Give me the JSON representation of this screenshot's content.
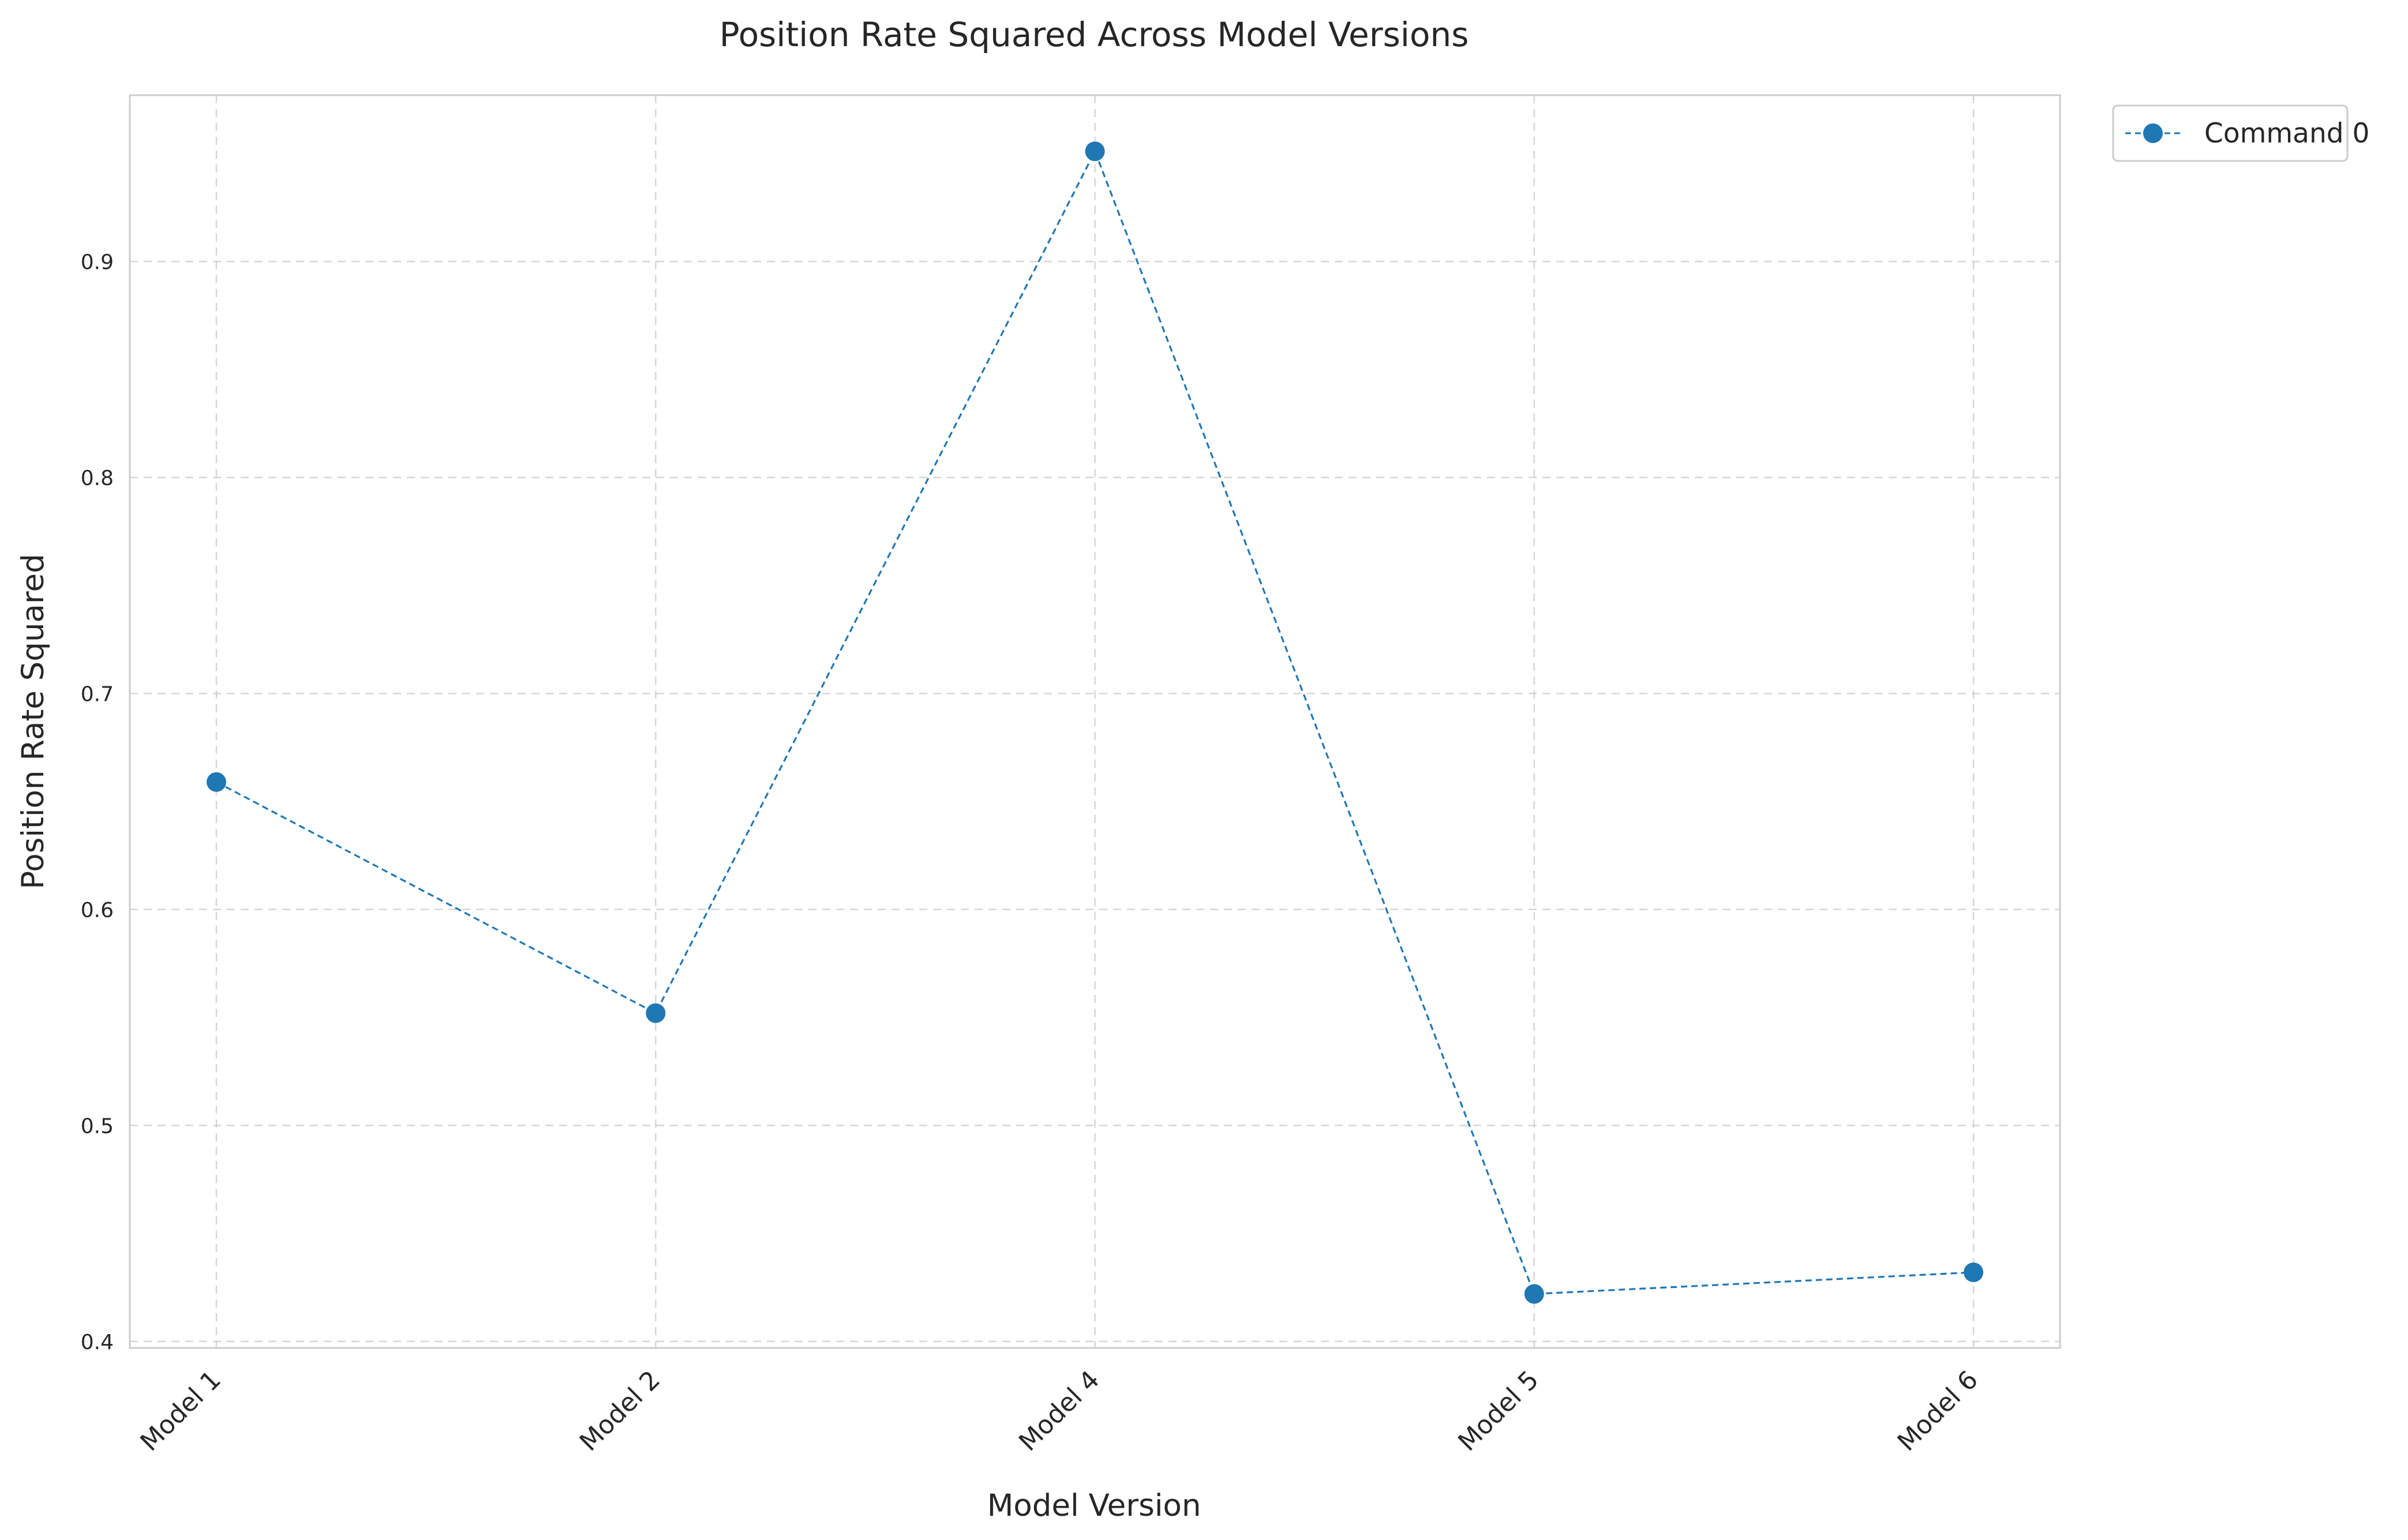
{
  "chart_data": {
    "type": "line",
    "title": "Position Rate Squared Across Model Versions",
    "xlabel": "Model Version",
    "ylabel": "Position Rate Squared",
    "categories": [
      "Model 1",
      "Model 2",
      "Model 4",
      "Model 5",
      "Model 6"
    ],
    "series": [
      {
        "name": "Command 0",
        "values": [
          0.659,
          0.552,
          0.951,
          0.422,
          0.432
        ],
        "color": "#1f77b4",
        "line_style": "dashed",
        "marker": "circle"
      }
    ],
    "ylim": [
      0.397,
      0.977
    ],
    "yticks": [
      0.4,
      0.5,
      0.6,
      0.7,
      0.8,
      0.9
    ],
    "ytick_labels": [
      "0.4",
      "0.5",
      "0.6",
      "0.7",
      "0.8",
      "0.9"
    ],
    "grid": true,
    "legend_position": "outside-top-right"
  }
}
